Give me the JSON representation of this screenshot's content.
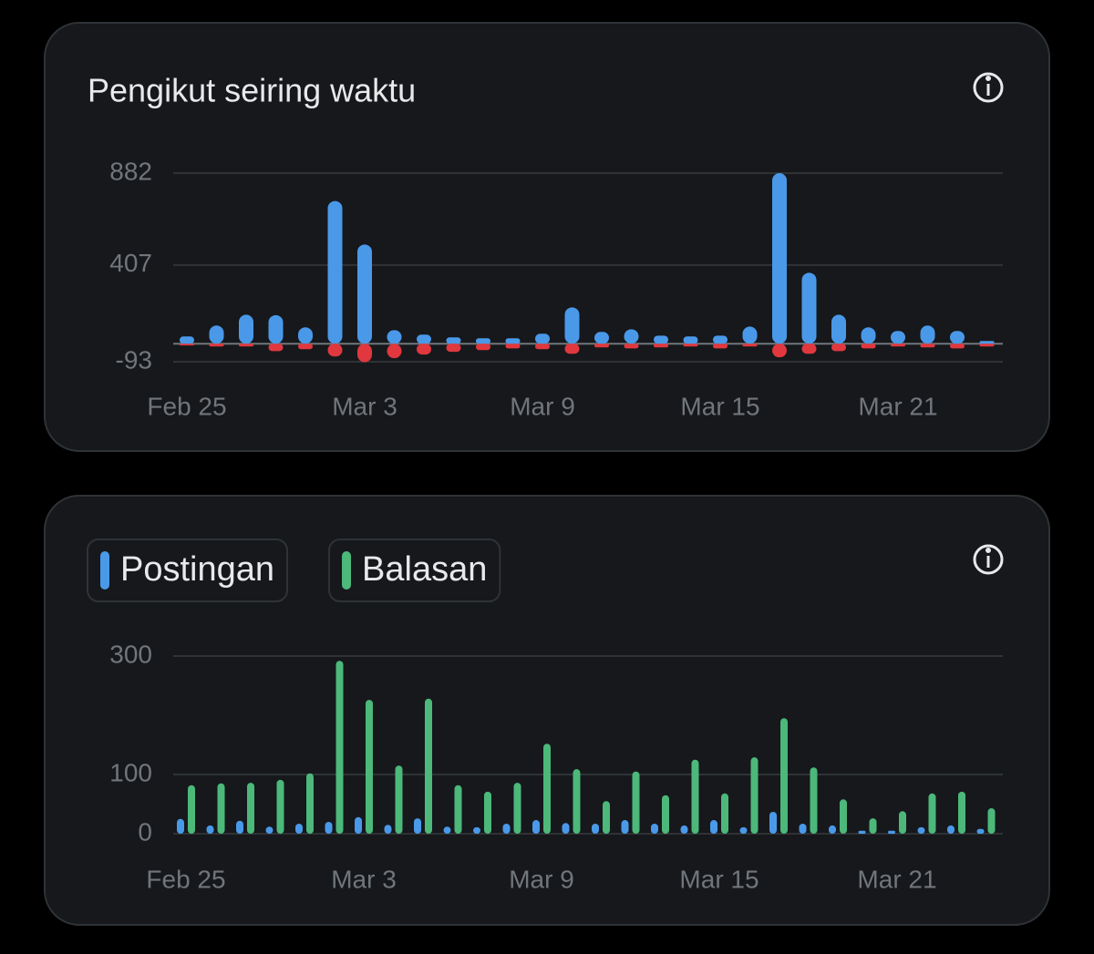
{
  "chart_data": [
    {
      "type": "bar",
      "barmode": "overlay",
      "title": "Pengikut seiring waktu",
      "categories": [
        "Feb 25",
        null,
        null,
        null,
        null,
        null,
        "Mar 3",
        null,
        null,
        null,
        null,
        null,
        "Mar 9",
        null,
        null,
        null,
        null,
        null,
        "Mar 15",
        null,
        null,
        null,
        null,
        null,
        "Mar 21",
        null,
        null,
        null
      ],
      "series": [
        {
          "color": "#4a99e9",
          "values": [
            38,
            94,
            150,
            148,
            85,
            738,
            513,
            70,
            47,
            33,
            28,
            28,
            52,
            188,
            61,
            75,
            42,
            38,
            42,
            89,
            882,
            367,
            150,
            85,
            66,
            94,
            66,
            14
          ]
        },
        {
          "color": "#e0383e",
          "values": [
            -9,
            -14,
            -14,
            -38,
            -28,
            -66,
            -95,
            -75,
            -56,
            -42,
            -33,
            -24,
            -28,
            -52,
            -19,
            -24,
            -19,
            -14,
            -24,
            -14,
            -70,
            -52,
            -38,
            -24,
            -14,
            -19,
            -24,
            -14
          ]
        }
      ],
      "ylim": [
        -93,
        882
      ],
      "yticks": [
        -93,
        407,
        882
      ],
      "grid": true
    },
    {
      "type": "bar",
      "barmode": "group",
      "categories": [
        "Feb 25",
        null,
        null,
        null,
        null,
        null,
        "Mar 3",
        null,
        null,
        null,
        null,
        null,
        "Mar 9",
        null,
        null,
        null,
        null,
        null,
        "Mar 15",
        null,
        null,
        null,
        null,
        null,
        "Mar 21",
        null,
        null,
        null
      ],
      "series": [
        {
          "name": "Postingan",
          "color": "#4a99e9",
          "values": [
            25,
            14,
            22,
            12,
            17,
            20,
            28,
            15,
            26,
            12,
            11,
            17,
            23,
            18,
            17,
            23,
            17,
            14,
            23,
            11,
            37,
            17,
            14,
            5,
            5,
            11,
            14,
            8
          ]
        },
        {
          "name": "Balasan",
          "color": "#4cb87a",
          "values": [
            82,
            85,
            86,
            91,
            102,
            292,
            226,
            115,
            228,
            82,
            71,
            86,
            152,
            109,
            55,
            105,
            65,
            125,
            68,
            129,
            195,
            112,
            58,
            26,
            38,
            68,
            71,
            43
          ]
        }
      ],
      "ylim": [
        0,
        300
      ],
      "yticks": [
        0,
        100,
        300
      ],
      "grid": true,
      "legend": "top-left"
    }
  ]
}
